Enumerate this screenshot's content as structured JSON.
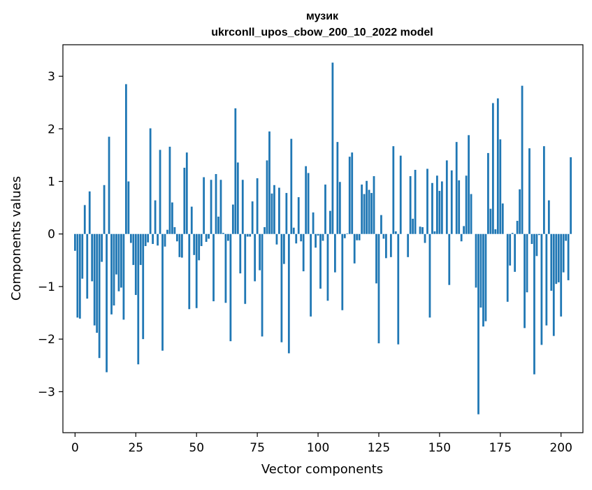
{
  "chart_data": {
    "type": "bar",
    "title": "музик",
    "subtitle": "ukrconll_upos_cbow_200_10_2022 model",
    "xlabel": "Vector components",
    "ylabel": "Components values",
    "xlim": [
      -5,
      209
    ],
    "ylim": [
      -3.78,
      3.6
    ],
    "xticks": [
      0,
      25,
      50,
      75,
      100,
      125,
      150,
      175,
      200
    ],
    "yticks": [
      -3,
      -2,
      -1,
      0,
      1,
      2,
      3
    ],
    "xtick_labels": [
      "0",
      "25",
      "50",
      "75",
      "100",
      "125",
      "150",
      "175",
      "200"
    ],
    "ytick_labels": [
      "−3",
      "−2",
      "−1",
      "0",
      "1",
      "2",
      "3"
    ],
    "grid": false,
    "legend": "none",
    "colors": {
      "bar": "#1f77b4",
      "axis": "#000000",
      "background": "#ffffff"
    },
    "values": [
      -0.32,
      -1.59,
      -1.61,
      -0.85,
      0.55,
      -1.23,
      0.81,
      -0.9,
      -1.74,
      -1.88,
      -2.36,
      -0.53,
      0.93,
      -2.63,
      1.85,
      -1.53,
      -1.36,
      -0.77,
      -1.09,
      -1.02,
      -1.63,
      2.85,
      1.0,
      -0.17,
      -0.59,
      -1.16,
      -2.48,
      -0.59,
      -2.0,
      -0.23,
      -0.16,
      2.01,
      -0.19,
      0.64,
      -0.22,
      1.6,
      -2.22,
      -0.24,
      0.08,
      1.66,
      0.6,
      0.13,
      -0.14,
      -0.44,
      -0.45,
      1.26,
      1.55,
      -1.43,
      0.52,
      -0.4,
      -1.41,
      -0.5,
      -0.23,
      1.08,
      -0.15,
      -0.09,
      1.03,
      -1.28,
      1.14,
      0.33,
      1.03,
      0.02,
      -1.31,
      -0.13,
      -2.04,
      0.56,
      2.39,
      1.36,
      -0.75,
      1.03,
      -1.33,
      -0.05,
      -0.05,
      0.62,
      -0.9,
      1.06,
      -0.69,
      -1.95,
      0.13,
      1.4,
      1.95,
      0.77,
      0.93,
      -0.2,
      0.88,
      -2.06,
      -0.57,
      0.78,
      -2.27,
      1.81,
      0.12,
      -0.18,
      0.7,
      -0.14,
      -0.71,
      1.29,
      1.16,
      -1.57,
      0.41,
      -0.26,
      -0.03,
      -1.04,
      -0.13,
      0.94,
      -1.27,
      0.44,
      3.26,
      -0.73,
      1.75,
      0.99,
      -1.45,
      -0.08,
      0.01,
      1.47,
      1.55,
      -0.56,
      -0.12,
      -0.12,
      0.94,
      0.76,
      1.01,
      0.84,
      0.78,
      1.1,
      -0.94,
      -2.08,
      0.36,
      -0.09,
      -0.46,
      0.0,
      -0.44,
      1.67,
      0.05,
      -2.1,
      1.49,
      0.0,
      0.0,
      -0.44,
      1.1,
      0.29,
      1.22,
      0.0,
      0.14,
      0.13,
      -0.17,
      1.24,
      -1.59,
      0.97,
      0.05,
      1.11,
      0.82,
      1.0,
      0.0,
      1.4,
      -0.97,
      1.21,
      0.0,
      1.75,
      1.02,
      -0.14,
      0.15,
      1.11,
      1.88,
      0.76,
      0.0,
      -1.02,
      -3.43,
      -1.4,
      -1.76,
      -1.66,
      1.54,
      0.48,
      2.49,
      0.09,
      2.58,
      1.8,
      0.58,
      0.0,
      -1.29,
      -0.6,
      0.02,
      -0.72,
      0.25,
      0.85,
      2.82,
      -1.79,
      -1.11,
      1.63,
      -0.19,
      -2.67,
      -0.42,
      -0.02,
      -2.11,
      1.67,
      -1.74,
      0.64,
      -1.08,
      -1.94,
      -0.95,
      -0.92,
      -1.57,
      -0.73,
      -0.13,
      -0.88,
      1.46
    ]
  }
}
